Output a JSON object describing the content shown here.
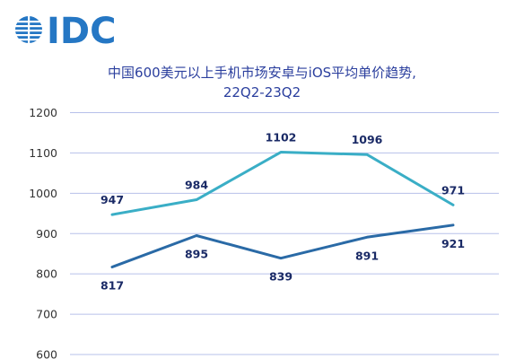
{
  "logo": {
    "text": "IDC",
    "color": "#2577c4"
  },
  "chart_data": {
    "type": "line",
    "title_lines": [
      "中国600美元以上手机市场安卓与iOS平均单价趋势,",
      "22Q2-23Q2"
    ],
    "xlabel": "",
    "ylabel": "",
    "ylim": [
      600,
      1200
    ],
    "yticks": [
      600,
      700,
      800,
      900,
      1000,
      1100,
      1200
    ],
    "grid": true,
    "series": [
      {
        "values": [
          947,
          984,
          1102,
          1096,
          971
        ],
        "labels": [
          "947",
          "984",
          "1102",
          "1096",
          "971"
        ],
        "color": "#3aaec6",
        "label_position": "above"
      },
      {
        "values": [
          817,
          895,
          839,
          891,
          921
        ],
        "labels": [
          "817",
          "895",
          "839",
          "891",
          "921"
        ],
        "color": "#2a6aa6",
        "label_position": "below"
      }
    ],
    "colors": {
      "grid": "#b7c0ea",
      "title": "#2b3f9e",
      "data_label": "#1a2a66"
    }
  }
}
